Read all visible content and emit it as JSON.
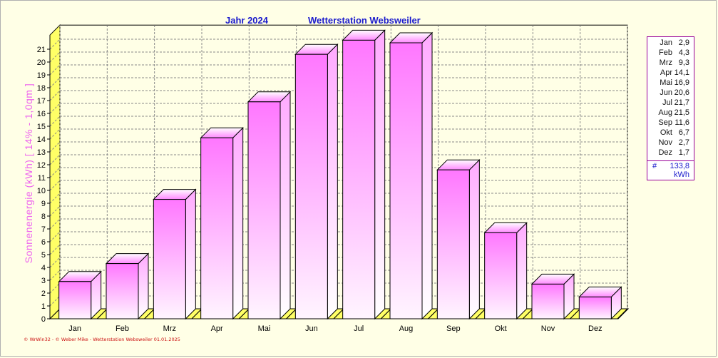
{
  "header": {
    "year_label": "Jahr  2024",
    "station_title": "Wetterstation Websweiler"
  },
  "footer": {
    "credit": "© WrWin32 - © Weber Mike - Wetterstation Websweiler 01.01.2025"
  },
  "chart_data": {
    "type": "bar",
    "title": "Wetterstation Websweiler",
    "subtitle": "Jahr  2024",
    "ylabel": "Sonnenenergie  (kWh)   [ 14% - 1,0qm ]",
    "xlabel": "",
    "ylim": [
      0,
      22
    ],
    "yticks": [
      "0",
      "1",
      "2",
      "3",
      "4",
      "5",
      "6",
      "7",
      "8",
      "9",
      "10",
      "11",
      "12",
      "13",
      "14",
      "15",
      "16",
      "17",
      "18",
      "19",
      "20",
      "21"
    ],
    "categories": [
      "Jan",
      "Feb",
      "Mrz",
      "Apr",
      "Mai",
      "Jun",
      "Jul",
      "Aug",
      "Sep",
      "Okt",
      "Nov",
      "Dez"
    ],
    "values": [
      2.9,
      4.3,
      9.3,
      14.1,
      16.9,
      20.6,
      21.7,
      21.5,
      11.6,
      6.7,
      2.7,
      1.7
    ],
    "grid": true,
    "legend_position": "right",
    "colors": {
      "bar_top": "#ff77ff",
      "bar_bottom": "#fff5ff",
      "bar_edge": "#000000",
      "floor": "#ffff66",
      "grid": "#888888",
      "background": "#ffffe6"
    }
  },
  "legend": {
    "rows": [
      {
        "name": "Jan",
        "value": "2,9"
      },
      {
        "name": "Feb",
        "value": "4,3"
      },
      {
        "name": "Mrz",
        "value": "9,3"
      },
      {
        "name": "Apr",
        "value": "14,1"
      },
      {
        "name": "Mai",
        "value": "16,9"
      },
      {
        "name": "Jun",
        "value": "20,6"
      },
      {
        "name": "Jul",
        "value": "21,7"
      },
      {
        "name": "Aug",
        "value": "21,5"
      },
      {
        "name": "Sep",
        "value": "11,6"
      },
      {
        "name": "Okt",
        "value": "6,7"
      },
      {
        "name": "Nov",
        "value": "2,7"
      },
      {
        "name": "Dez",
        "value": "1,7"
      }
    ],
    "total_symbol": "#",
    "total_value": "133,8",
    "total_unit": "kWh"
  }
}
